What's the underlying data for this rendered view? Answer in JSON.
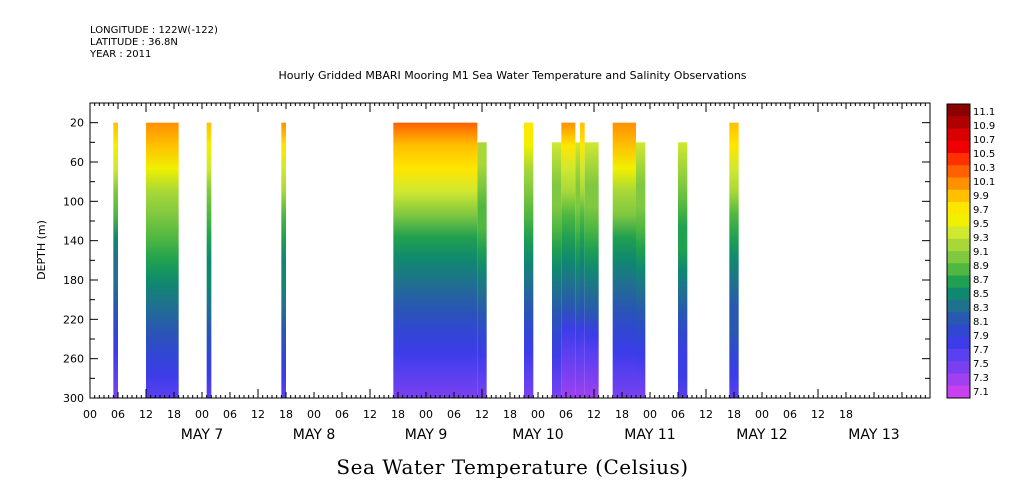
{
  "header": {
    "longitude": "LONGITUDE : 122W(-122)",
    "latitude": "LATITUDE : 36.8N",
    "year": "YEAR : 2011"
  },
  "chart_data": {
    "type": "heatmap",
    "title": "Hourly Gridded MBARI Mooring M1 Sea Water Temperature and Salinity Observations",
    "caption": "Sea Water Temperature (Celsius)",
    "ylabel": "DEPTH (m)",
    "xlabel": "",
    "ylim": [
      0,
      300
    ],
    "y_inverted": true,
    "y_ticks": [
      20,
      60,
      100,
      140,
      180,
      220,
      260,
      300
    ],
    "x_range_hours": [
      -12,
      168
    ],
    "x_major_interval_hours": 24,
    "x_tick_interval_hours": 6,
    "x_tick_labels": [
      "00",
      "06",
      "12",
      "18",
      "00",
      "06",
      "12",
      "18",
      "00",
      "06",
      "12",
      "18",
      "00",
      "06",
      "12",
      "18",
      "00",
      "06",
      "12",
      "18",
      "00",
      "06",
      "12",
      "18",
      "00",
      "06",
      "12",
      "18"
    ],
    "x_tick_hours": [
      -12,
      -6,
      0,
      6,
      12,
      18,
      24,
      30,
      36,
      42,
      48,
      54,
      60,
      66,
      72,
      78,
      84,
      90,
      96,
      102,
      108,
      114,
      120,
      126,
      132,
      138,
      144,
      150
    ],
    "day_labels": [
      "MAY  7",
      "MAY  8",
      "MAY  9",
      "MAY 10",
      "MAY 11",
      "MAY 12",
      "MAY 13"
    ],
    "colorbar": {
      "min": 7.1,
      "max": 11.1,
      "labels": [
        "11.1",
        "10.9",
        "10.7",
        "10.5",
        "10.3",
        "10.1",
        "9.9",
        "9.7",
        "9.5",
        "9.3",
        "9.1",
        "8.9",
        "8.7",
        "8.5",
        "8.3",
        "8.1",
        "7.9",
        "7.7",
        "7.5",
        "7.3",
        "7.1"
      ],
      "colors": [
        "#8b0000",
        "#b00000",
        "#d80000",
        "#f00000",
        "#ff3000",
        "#ff6000",
        "#ff9000",
        "#ffc000",
        "#ffe600",
        "#f0f000",
        "#d0e830",
        "#a8d838",
        "#80c840",
        "#50b840",
        "#20a050",
        "#108870",
        "#207090",
        "#2858b0",
        "#3048d0",
        "#3c3ce8",
        "#5a40f0",
        "#7a40f0",
        "#a040f0",
        "#c840f0"
      ]
    },
    "segments": [
      {
        "start_hours": -7,
        "end_hours": -6,
        "top_depth": 20,
        "top_temp": 9.9,
        "mid_temp": 8.7,
        "bottom_temp": 7.4
      },
      {
        "start_hours": 0,
        "end_hours": 7,
        "top_depth": 20,
        "top_temp": 10.1,
        "mid_temp": 8.9,
        "bottom_temp": 7.6
      },
      {
        "start_hours": 13,
        "end_hours": 14,
        "top_depth": 20,
        "top_temp": 9.8,
        "mid_temp": 8.8,
        "bottom_temp": 7.7
      },
      {
        "start_hours": 29,
        "end_hours": 30,
        "top_depth": 20,
        "top_temp": 10.0,
        "mid_temp": 8.8,
        "bottom_temp": 7.7
      },
      {
        "start_hours": 53,
        "end_hours": 71,
        "top_depth": 20,
        "top_temp": 10.3,
        "mid_temp": 8.9,
        "bottom_temp": 7.4
      },
      {
        "start_hours": 71,
        "end_hours": 73,
        "top_depth": 40,
        "top_temp": 9.2,
        "mid_temp": 8.8,
        "bottom_temp": 7.4
      },
      {
        "start_hours": 81,
        "end_hours": 83,
        "top_depth": 20,
        "top_temp": 9.7,
        "mid_temp": 8.8,
        "bottom_temp": 7.5
      },
      {
        "start_hours": 87,
        "end_hours": 89,
        "top_depth": 40,
        "top_temp": 9.3,
        "mid_temp": 8.8,
        "bottom_temp": 7.4
      },
      {
        "start_hours": 89,
        "end_hours": 92,
        "top_depth": 20,
        "top_temp": 10.0,
        "mid_temp": 8.8,
        "bottom_temp": 7.3
      },
      {
        "start_hours": 92,
        "end_hours": 93,
        "top_depth": 40,
        "top_temp": 9.3,
        "mid_temp": 8.8,
        "bottom_temp": 7.3
      },
      {
        "start_hours": 93,
        "end_hours": 94,
        "top_depth": 20,
        "top_temp": 9.9,
        "mid_temp": 8.8,
        "bottom_temp": 7.3
      },
      {
        "start_hours": 94,
        "end_hours": 97,
        "top_depth": 40,
        "top_temp": 9.3,
        "mid_temp": 8.8,
        "bottom_temp": 7.3
      },
      {
        "start_hours": 100,
        "end_hours": 105,
        "top_depth": 20,
        "top_temp": 10.1,
        "mid_temp": 8.9,
        "bottom_temp": 7.4
      },
      {
        "start_hours": 105,
        "end_hours": 107,
        "top_depth": 40,
        "top_temp": 9.3,
        "mid_temp": 8.8,
        "bottom_temp": 7.4
      },
      {
        "start_hours": 114,
        "end_hours": 116,
        "top_depth": 40,
        "top_temp": 9.3,
        "mid_temp": 8.7,
        "bottom_temp": 7.6
      },
      {
        "start_hours": 125,
        "end_hours": 127,
        "top_depth": 20,
        "top_temp": 9.9,
        "mid_temp": 8.8,
        "bottom_temp": 7.6
      }
    ]
  }
}
